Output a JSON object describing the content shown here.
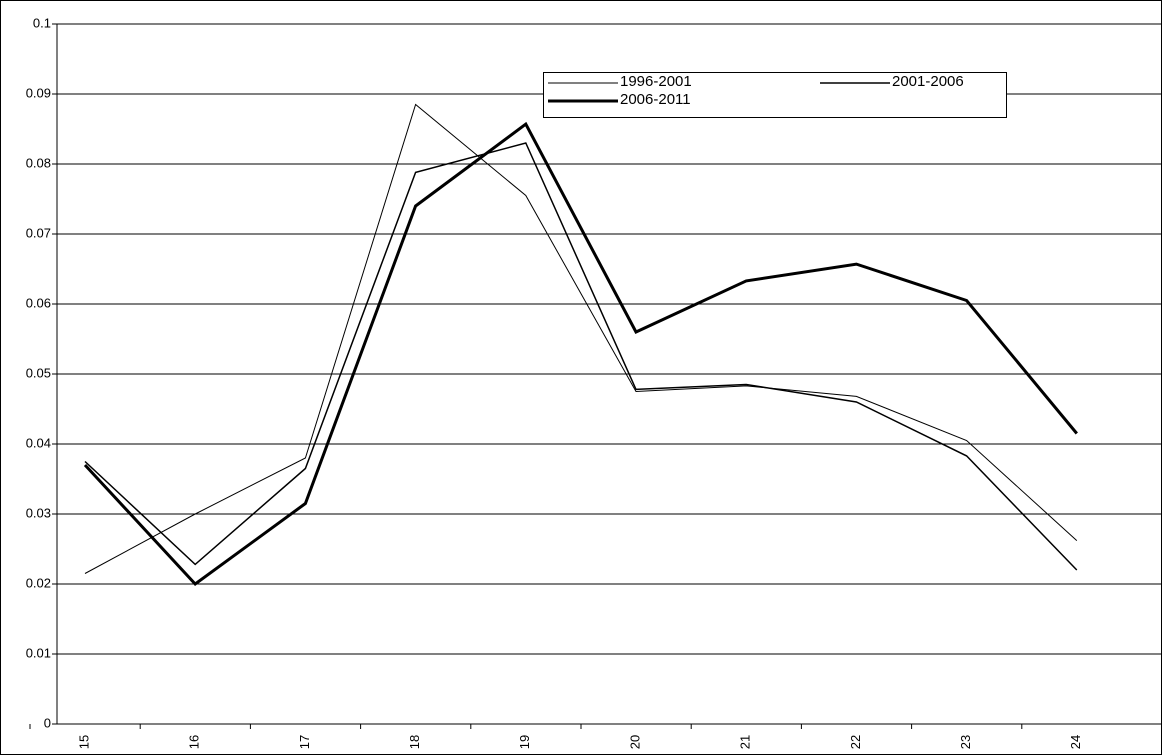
{
  "chart_data": {
    "type": "line",
    "categories": [
      "15",
      "16",
      "17",
      "18",
      "19",
      "20",
      "21",
      "22",
      "23",
      "24"
    ],
    "series": [
      {
        "name": "1996-2001",
        "color": "#000000",
        "width": 1,
        "values": [
          0.0215,
          0.03,
          0.038,
          0.0885,
          0.0755,
          0.0475,
          0.0483,
          0.0468,
          0.0405,
          0.0262
        ]
      },
      {
        "name": "2001-2006",
        "color": "#000000",
        "width": 1.5,
        "values": [
          0.0375,
          0.0228,
          0.0365,
          0.0788,
          0.083,
          0.0478,
          0.0485,
          0.046,
          0.0383,
          0.022
        ]
      },
      {
        "name": "2006-2011",
        "color": "#000000",
        "width": 3,
        "values": [
          0.037,
          0.02,
          0.0315,
          0.074,
          0.0857,
          0.056,
          0.0633,
          0.0657,
          0.0605,
          0.0415
        ]
      }
    ],
    "ylim": [
      0,
      0.1
    ],
    "yticks": [
      0,
      0.01,
      0.02,
      0.03,
      0.04,
      0.05,
      0.06,
      0.07,
      0.08,
      0.09,
      0.1
    ],
    "grid": true
  }
}
